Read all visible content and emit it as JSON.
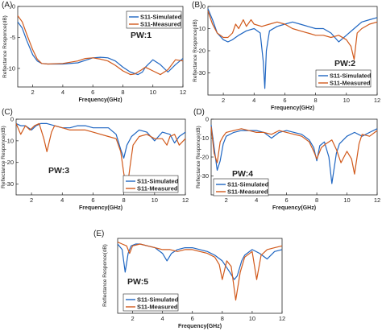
{
  "figure": {
    "xlabel": "Frequency(GHz)",
    "ylabel": "Reflectance Responce(dB)"
  },
  "series_colors": {
    "simulated": "#1f66c2",
    "measured": "#d1591b"
  },
  "chart_data": [
    {
      "type": "line",
      "panel": "(A)",
      "label": "PW:1",
      "xlim": [
        1,
        12
      ],
      "ylim": [
        -13,
        0
      ],
      "xticks": [
        2,
        4,
        6,
        8,
        10,
        12
      ],
      "yticks": [
        -10,
        -5,
        0
      ],
      "xlabel": "Frequency(GHz)",
      "ylabel": "Reflectance Responce(dB)",
      "legend": "top-right",
      "series": [
        {
          "name": "S11-Simulated",
          "color": "#1f66c2",
          "x": [
            1.0,
            1.3,
            1.6,
            2.0,
            2.3,
            2.6,
            3,
            4,
            5,
            5.5,
            6,
            6.5,
            7,
            7.5,
            8,
            8.5,
            9,
            9.3,
            9.5,
            10,
            10.5,
            11,
            11.5,
            12
          ],
          "y": [
            -2.5,
            -3.5,
            -5.5,
            -7.8,
            -8.8,
            -9.2,
            -9.3,
            -9.3,
            -9.1,
            -8.7,
            -8.3,
            -8.2,
            -8.3,
            -8.8,
            -9.8,
            -10.6,
            -11.0,
            -10.6,
            -9.8,
            -8.6,
            -9.4,
            -10.6,
            -9.4,
            -8.4
          ]
        },
        {
          "name": "S11-Measured",
          "color": "#d1591b",
          "x": [
            1.0,
            1.3,
            1.6,
            2.0,
            2.3,
            2.6,
            3,
            4,
            5,
            5.5,
            6,
            6.5,
            7,
            7.5,
            8,
            8.5,
            8.8,
            9.2,
            9.5,
            10,
            10.5,
            11,
            11.5,
            12
          ],
          "y": [
            -1.5,
            -2.5,
            -4.5,
            -7.0,
            -8.5,
            -9.2,
            -9.3,
            -9.2,
            -8.8,
            -8.4,
            -8.3,
            -8.5,
            -8.8,
            -9.5,
            -10.4,
            -11.0,
            -10.9,
            -10.3,
            -9.8,
            -10.4,
            -11.0,
            -10.2,
            -8.6,
            -8.8
          ]
        }
      ]
    },
    {
      "type": "line",
      "panel": "(B)",
      "label": "PW:2",
      "xlim": [
        1,
        12
      ],
      "ylim": [
        -40,
        0
      ],
      "xticks": [
        2,
        4,
        6,
        8,
        10,
        12
      ],
      "yticks": [
        -30,
        -20,
        -10,
        0
      ],
      "xlabel": "Frequency(GHz)",
      "ylabel": "Reflectance Responce(dB)",
      "legend": "bottom-right",
      "series": [
        {
          "name": "S11-Simulated",
          "color": "#1f66c2",
          "x": [
            1.0,
            1.3,
            1.6,
            2.0,
            2.3,
            2.6,
            3,
            3.5,
            4,
            4.4,
            4.6,
            4.7,
            4.8,
            5,
            5.5,
            6,
            6.5,
            7,
            7.5,
            8,
            8.5,
            9,
            9.5,
            10,
            10.5,
            11,
            11.5,
            12
          ],
          "y": [
            -1,
            -6,
            -12,
            -15,
            -16,
            -15,
            -13,
            -11,
            -10,
            -12,
            -25,
            -37,
            -20,
            -11,
            -9,
            -8,
            -7,
            -8,
            -9,
            -10,
            -10,
            -12,
            -16,
            -13,
            -10,
            -7,
            -6,
            -5
          ]
        },
        {
          "name": "S11-Measured",
          "color": "#d1591b",
          "x": [
            1.0,
            1.3,
            1.6,
            2.0,
            2.3,
            2.6,
            2.8,
            3,
            3.3,
            3.5,
            3.8,
            4,
            4.5,
            5,
            5.5,
            6,
            6.5,
            7,
            7.5,
            8,
            8.5,
            9,
            9.5,
            10,
            10.3,
            10.5,
            10.7,
            11,
            11.5,
            12
          ],
          "y": [
            -2,
            -8,
            -12,
            -14,
            -14,
            -12,
            -8,
            -10,
            -6,
            -9,
            -6,
            -8,
            -9,
            -8,
            -7,
            -8,
            -10,
            -11,
            -12,
            -13,
            -13,
            -14,
            -13,
            -15,
            -18,
            -24,
            -12,
            -10,
            -8,
            -7
          ]
        }
      ]
    },
    {
      "type": "line",
      "panel": "(C)",
      "label": "PW:3",
      "xlim": [
        1,
        12
      ],
      "ylim": [
        -35,
        0
      ],
      "xticks": [
        2,
        4,
        6,
        8,
        10,
        12
      ],
      "yticks": [
        -30,
        -20,
        -10,
        0
      ],
      "xlabel": "Frequency(GHz)",
      "ylabel": "Reflectance Responce(dB)",
      "legend": "bottom-right",
      "series": [
        {
          "name": "S11-Simulated",
          "color": "#1f66c2",
          "x": [
            1.0,
            1.3,
            1.6,
            2.0,
            2.3,
            2.6,
            3,
            3.5,
            4,
            4.5,
            5,
            5.5,
            6,
            6.5,
            7,
            7.5,
            7.8,
            8,
            8.2,
            8.5,
            9,
            9.5,
            10,
            10.5,
            11,
            11.3,
            11.6,
            12
          ],
          "y": [
            -2,
            -3,
            -3,
            -5,
            -3,
            -2,
            -2,
            -3,
            -4,
            -4,
            -3,
            -3,
            -4,
            -4,
            -4,
            -7,
            -14,
            -18,
            -12,
            -8,
            -5,
            -6,
            -10,
            -6,
            -7,
            -11,
            -8,
            -6
          ]
        },
        {
          "name": "S11-Measured",
          "color": "#d1591b",
          "x": [
            1.0,
            1.3,
            1.6,
            1.9,
            2.2,
            2.5,
            2.8,
            3,
            3.3,
            3.5,
            4,
            4.5,
            5,
            5.5,
            6,
            6.5,
            7,
            7.5,
            7.8,
            8,
            8.2,
            8.4,
            8.6,
            9,
            9.5,
            10,
            10.5,
            10.8,
            11,
            11.3,
            11.6,
            12
          ],
          "y": [
            -2,
            -7,
            -3,
            -5,
            -3,
            -2,
            -9,
            -15,
            -6,
            -3,
            -4,
            -5,
            -5,
            -5,
            -6,
            -7,
            -8,
            -9,
            -15,
            -25,
            -33,
            -22,
            -12,
            -8,
            -7,
            -9,
            -9,
            -12,
            -8,
            -7,
            -12,
            -9
          ]
        }
      ]
    },
    {
      "type": "line",
      "panel": "(D)",
      "label": "PW:4",
      "xlim": [
        1,
        12
      ],
      "ylim": [
        -40,
        0
      ],
      "xticks": [
        2,
        4,
        6,
        8,
        10,
        12
      ],
      "yticks": [
        -30,
        -20,
        -10,
        0
      ],
      "xlabel": "Frequency(GHz)",
      "ylabel": "Reflectance Responce(dB)",
      "legend": "bottom-left",
      "series": [
        {
          "name": "S11-Simulated",
          "color": "#1f66c2",
          "x": [
            1.0,
            1.2,
            1.4,
            1.6,
            1.8,
            2.0,
            2.5,
            3,
            3.5,
            4,
            4.5,
            5,
            5.5,
            6,
            6.5,
            7,
            7.5,
            7.8,
            8,
            8.2,
            8.5,
            8.8,
            9,
            9.3,
            9.5,
            10,
            10.5,
            11,
            11.5,
            12
          ],
          "y": [
            -3,
            -15,
            -27,
            -22,
            -13,
            -9,
            -7,
            -6,
            -6,
            -6,
            -7,
            -10,
            -7,
            -6,
            -7,
            -8,
            -11,
            -15,
            -22,
            -14,
            -12,
            -20,
            -34,
            -18,
            -13,
            -9,
            -7,
            -9,
            -7,
            -5
          ]
        },
        {
          "name": "S11-Measured",
          "color": "#d1591b",
          "x": [
            1.0,
            1.2,
            1.4,
            1.6,
            1.8,
            2.0,
            2.5,
            3,
            3.5,
            4,
            4.5,
            5,
            5.5,
            6,
            6.5,
            7,
            7.5,
            7.8,
            8,
            8.3,
            8.6,
            9,
            9.3,
            9.6,
            10,
            10.3,
            10.5,
            10.8,
            11,
            11.5,
            12
          ],
          "y": [
            -4,
            -18,
            -23,
            -12,
            -9,
            -7,
            -6,
            -5,
            -6,
            -7,
            -7,
            -8,
            -6,
            -7,
            -8,
            -9,
            -12,
            -17,
            -21,
            -15,
            -13,
            -11,
            -16,
            -23,
            -17,
            -21,
            -29,
            -13,
            -8,
            -9,
            -6
          ]
        }
      ]
    },
    {
      "type": "line",
      "panel": "(E)",
      "label": "PW:5",
      "xlim": [
        1,
        12
      ],
      "ylim": [
        -40,
        0
      ],
      "xticks": [
        2,
        4,
        6,
        8,
        10,
        12
      ],
      "yticks": [],
      "xlabel": "Frequency(GHz)",
      "ylabel": "Reflectance Responce(dB)",
      "legend": "bottom-left",
      "series": [
        {
          "name": "S11-Simulated",
          "color": "#1f66c2",
          "x": [
            1.0,
            1.3,
            1.5,
            1.7,
            1.9,
            2.2,
            2.5,
            3,
            3.5,
            4,
            4.3,
            4.6,
            5,
            5.5,
            6,
            6.5,
            7,
            7.5,
            8,
            8.5,
            8.8,
            9,
            9.3,
            9.5,
            10,
            10.5,
            11,
            11.5,
            12
          ],
          "y": [
            -3,
            -6,
            -18,
            -8,
            -4,
            -3,
            -3,
            -4,
            -5,
            -8,
            -12,
            -8,
            -6,
            -5,
            -5,
            -6,
            -7,
            -9,
            -12,
            -18,
            -22,
            -20,
            -12,
            -9,
            -6,
            -8,
            -11,
            -7,
            -6
          ]
        },
        {
          "name": "S11-Measured",
          "color": "#d1591b",
          "x": [
            1.0,
            1.3,
            1.6,
            1.8,
            2.0,
            2.5,
            3,
            3.5,
            4,
            4.5,
            5,
            5.5,
            6,
            6.5,
            7,
            7.5,
            7.8,
            8,
            8.3,
            8.6,
            8.9,
            9.2,
            9.5,
            10,
            10.3,
            10.6,
            11,
            11.5,
            12
          ],
          "y": [
            -2,
            -3,
            -4,
            -8,
            -4,
            -3,
            -4,
            -5,
            -6,
            -6,
            -7,
            -6,
            -6,
            -7,
            -8,
            -10,
            -14,
            -22,
            -12,
            -15,
            -33,
            -18,
            -10,
            -7,
            -22,
            -9,
            -6,
            -5,
            -4
          ]
        }
      ]
    }
  ]
}
